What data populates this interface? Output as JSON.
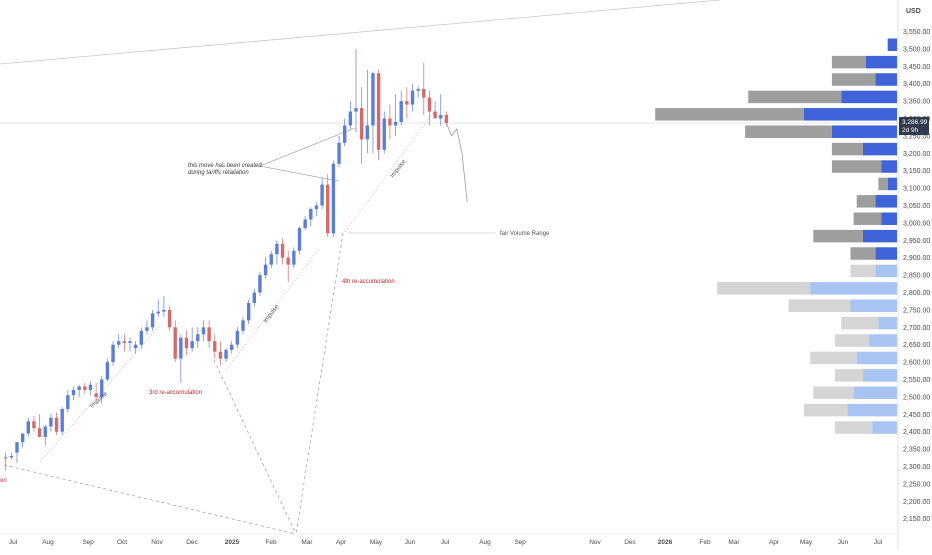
{
  "chart_data": {
    "type": "candlestick",
    "currency": "USD",
    "price_label": "3,286.99",
    "countdown_label": "2d 9h",
    "y_ticks": [
      "3,550.00",
      "3,500.00",
      "3,450.00",
      "3,400.00",
      "3,350.00",
      "3,300.00",
      "3,250.00",
      "3,200.00",
      "3,150.00",
      "3,100.00",
      "3,050.00",
      "3,000.00",
      "2,950.00",
      "2,900.00",
      "2,850.00",
      "2,800.00",
      "2,750.00",
      "2,700.00",
      "2,650.00",
      "2,600.00",
      "2,550.00",
      "2,500.00",
      "2,450.00",
      "2,400.00",
      "2,350.00",
      "2,300.00",
      "2,250.00",
      "2,200.00",
      "2,150.00"
    ],
    "x_ticks": [
      "Jul",
      "Aug",
      "Sep",
      "Oct",
      "Nov",
      "Dec",
      "2025",
      "Feb",
      "Mar",
      "Apr",
      "May",
      "Jun",
      "Jul",
      "Aug",
      "Sep",
      "Nov",
      "Dec",
      "2026",
      "Feb",
      "Mar",
      "Apr",
      "May",
      "Jun",
      "Jul"
    ],
    "x_tick_bold": [
      "2025",
      "2026"
    ],
    "current_price": 3286.99,
    "ylim": [
      2120,
      3590
    ],
    "annotations": {
      "tariffs": [
        "this move has been created",
        "during tariffs retaliation"
      ],
      "fair_volume": "fair Volume Range",
      "re_accum_3": "3rd re-accumulation",
      "re_accum_4": "4th re-accumulation",
      "impulse": "Impulse",
      "left_edge": "on"
    },
    "candles": [
      {
        "o": 2325,
        "h": 2340,
        "l": 2290,
        "c": 2326
      },
      {
        "o": 2326,
        "h": 2340,
        "l": 2320,
        "c": 2330
      },
      {
        "o": 2340,
        "h": 2360,
        "l": 2310,
        "c": 2370
      },
      {
        "o": 2370,
        "h": 2390,
        "l": 2355,
        "c": 2395
      },
      {
        "o": 2395,
        "h": 2440,
        "l": 2385,
        "c": 2430
      },
      {
        "o": 2430,
        "h": 2445,
        "l": 2400,
        "c": 2410
      },
      {
        "o": 2410,
        "h": 2450,
        "l": 2390,
        "c": 2385
      },
      {
        "o": 2385,
        "h": 2420,
        "l": 2360,
        "c": 2415
      },
      {
        "o": 2415,
        "h": 2450,
        "l": 2400,
        "c": 2440
      },
      {
        "o": 2440,
        "h": 2455,
        "l": 2390,
        "c": 2400
      },
      {
        "o": 2400,
        "h": 2470,
        "l": 2390,
        "c": 2465
      },
      {
        "o": 2465,
        "h": 2520,
        "l": 2455,
        "c": 2505
      },
      {
        "o": 2505,
        "h": 2530,
        "l": 2490,
        "c": 2520
      },
      {
        "o": 2520,
        "h": 2535,
        "l": 2500,
        "c": 2530
      },
      {
        "o": 2530,
        "h": 2540,
        "l": 2510,
        "c": 2520
      },
      {
        "o": 2520,
        "h": 2545,
        "l": 2505,
        "c": 2535
      },
      {
        "o": 2510,
        "h": 2540,
        "l": 2490,
        "c": 2500
      },
      {
        "o": 2500,
        "h": 2560,
        "l": 2480,
        "c": 2550
      },
      {
        "o": 2550,
        "h": 2610,
        "l": 2545,
        "c": 2600
      },
      {
        "o": 2600,
        "h": 2660,
        "l": 2590,
        "c": 2650
      },
      {
        "o": 2650,
        "h": 2680,
        "l": 2640,
        "c": 2660
      },
      {
        "o": 2660,
        "h": 2680,
        "l": 2630,
        "c": 2655
      },
      {
        "o": 2655,
        "h": 2670,
        "l": 2630,
        "c": 2660
      },
      {
        "o": 2640,
        "h": 2660,
        "l": 2625,
        "c": 2650
      },
      {
        "o": 2650,
        "h": 2700,
        "l": 2640,
        "c": 2690
      },
      {
        "o": 2690,
        "h": 2720,
        "l": 2680,
        "c": 2700
      },
      {
        "o": 2700,
        "h": 2750,
        "l": 2690,
        "c": 2740
      },
      {
        "o": 2740,
        "h": 2780,
        "l": 2730,
        "c": 2745
      },
      {
        "o": 2745,
        "h": 2790,
        "l": 2730,
        "c": 2750
      },
      {
        "o": 2750,
        "h": 2760,
        "l": 2690,
        "c": 2700
      },
      {
        "o": 2700,
        "h": 2720,
        "l": 2600,
        "c": 2610
      },
      {
        "o": 2610,
        "h": 2680,
        "l": 2540,
        "c": 2670
      },
      {
        "o": 2670,
        "h": 2690,
        "l": 2620,
        "c": 2640
      },
      {
        "o": 2640,
        "h": 2700,
        "l": 2630,
        "c": 2660
      },
      {
        "o": 2660,
        "h": 2700,
        "l": 2640,
        "c": 2680
      },
      {
        "o": 2680,
        "h": 2720,
        "l": 2660,
        "c": 2700
      },
      {
        "o": 2700,
        "h": 2720,
        "l": 2640,
        "c": 2660
      },
      {
        "o": 2660,
        "h": 2680,
        "l": 2610,
        "c": 2630
      },
      {
        "o": 2630,
        "h": 2660,
        "l": 2590,
        "c": 2610
      },
      {
        "o": 2610,
        "h": 2640,
        "l": 2600,
        "c": 2635
      },
      {
        "o": 2635,
        "h": 2660,
        "l": 2625,
        "c": 2650
      },
      {
        "o": 2650,
        "h": 2700,
        "l": 2640,
        "c": 2690
      },
      {
        "o": 2690,
        "h": 2730,
        "l": 2680,
        "c": 2720
      },
      {
        "o": 2720,
        "h": 2780,
        "l": 2710,
        "c": 2770
      },
      {
        "o": 2770,
        "h": 2810,
        "l": 2760,
        "c": 2800
      },
      {
        "o": 2800,
        "h": 2860,
        "l": 2790,
        "c": 2850
      },
      {
        "o": 2850,
        "h": 2900,
        "l": 2840,
        "c": 2880
      },
      {
        "o": 2880,
        "h": 2920,
        "l": 2870,
        "c": 2910
      },
      {
        "o": 2910,
        "h": 2950,
        "l": 2880,
        "c": 2940
      },
      {
        "o": 2940,
        "h": 2955,
        "l": 2880,
        "c": 2900
      },
      {
        "o": 2900,
        "h": 2920,
        "l": 2830,
        "c": 2880
      },
      {
        "o": 2880,
        "h": 2930,
        "l": 2870,
        "c": 2920
      },
      {
        "o": 2920,
        "h": 2990,
        "l": 2910,
        "c": 2985
      },
      {
        "o": 2985,
        "h": 3020,
        "l": 2980,
        "c": 3010
      },
      {
        "o": 3010,
        "h": 3045,
        "l": 2990,
        "c": 3040
      },
      {
        "o": 3040,
        "h": 3060,
        "l": 3020,
        "c": 3050
      },
      {
        "o": 3050,
        "h": 3130,
        "l": 3040,
        "c": 3110
      },
      {
        "o": 3110,
        "h": 3140,
        "l": 2960,
        "c": 2970
      },
      {
        "o": 2970,
        "h": 3180,
        "l": 2960,
        "c": 3170
      },
      {
        "o": 3170,
        "h": 3250,
        "l": 3160,
        "c": 3230
      },
      {
        "o": 3230,
        "h": 3300,
        "l": 3220,
        "c": 3280
      },
      {
        "o": 3280,
        "h": 3350,
        "l": 3270,
        "c": 3320
      },
      {
        "o": 3320,
        "h": 3500,
        "l": 3260,
        "c": 3330
      },
      {
        "o": 3330,
        "h": 3390,
        "l": 3170,
        "c": 3240
      },
      {
        "o": 3240,
        "h": 3440,
        "l": 3200,
        "c": 3280
      },
      {
        "o": 3280,
        "h": 3435,
        "l": 3200,
        "c": 3430
      },
      {
        "o": 3430,
        "h": 3440,
        "l": 3180,
        "c": 3210
      },
      {
        "o": 3210,
        "h": 3320,
        "l": 3200,
        "c": 3300
      },
      {
        "o": 3300,
        "h": 3340,
        "l": 3240,
        "c": 3280
      },
      {
        "o": 3280,
        "h": 3370,
        "l": 3250,
        "c": 3290
      },
      {
        "o": 3290,
        "h": 3380,
        "l": 3280,
        "c": 3350
      },
      {
        "o": 3350,
        "h": 3390,
        "l": 3300,
        "c": 3340
      },
      {
        "o": 3340,
        "h": 3400,
        "l": 3320,
        "c": 3380
      },
      {
        "o": 3380,
        "h": 3395,
        "l": 3360,
        "c": 3385
      },
      {
        "o": 3385,
        "h": 3460,
        "l": 3310,
        "c": 3360
      },
      {
        "o": 3360,
        "h": 3380,
        "l": 3280,
        "c": 3320
      },
      {
        "o": 3320,
        "h": 3350,
        "l": 3300,
        "c": 3300
      },
      {
        "o": 3300,
        "h": 3370,
        "l": 3280,
        "c": 3310
      },
      {
        "o": 3310,
        "h": 3320,
        "l": 3280,
        "c": 3286.99
      }
    ],
    "projection_path": [
      [
        3286.99,
        0
      ],
      [
        3250,
        1
      ],
      [
        3270,
        2
      ],
      [
        3200,
        3
      ],
      [
        3060,
        4
      ]
    ],
    "volume_profile": [
      {
        "p": 3512,
        "b": 6,
        "s": 0
      },
      {
        "p": 3462,
        "b": 20,
        "s": 22
      },
      {
        "p": 3412,
        "b": 14,
        "s": 28
      },
      {
        "p": 3362,
        "b": 36,
        "s": 60
      },
      {
        "p": 3312,
        "b": 60,
        "s": 96
      },
      {
        "p": 3262,
        "b": 42,
        "s": 56
      },
      {
        "p": 3212,
        "b": 22,
        "s": 20
      },
      {
        "p": 3162,
        "b": 10,
        "s": 32
      },
      {
        "p": 3112,
        "b": 6,
        "s": 6
      },
      {
        "p": 3062,
        "b": 14,
        "s": 12
      },
      {
        "p": 3012,
        "b": 10,
        "s": 18
      },
      {
        "p": 2962,
        "b": 22,
        "s": 32
      },
      {
        "p": 2912,
        "b": 14,
        "s": 16
      },
      {
        "p": 2862,
        "b": 14,
        "s": 16
      },
      {
        "p": 2812,
        "b": 56,
        "s": 60
      },
      {
        "p": 2762,
        "b": 30,
        "s": 40
      },
      {
        "p": 2712,
        "b": 12,
        "s": 24
      },
      {
        "p": 2662,
        "b": 18,
        "s": 22
      },
      {
        "p": 2612,
        "b": 26,
        "s": 30
      },
      {
        "p": 2562,
        "b": 22,
        "s": 18
      },
      {
        "p": 2512,
        "b": 28,
        "s": 26
      },
      {
        "p": 2462,
        "b": 32,
        "s": 28
      },
      {
        "p": 2412,
        "b": 16,
        "s": 24
      }
    ]
  }
}
